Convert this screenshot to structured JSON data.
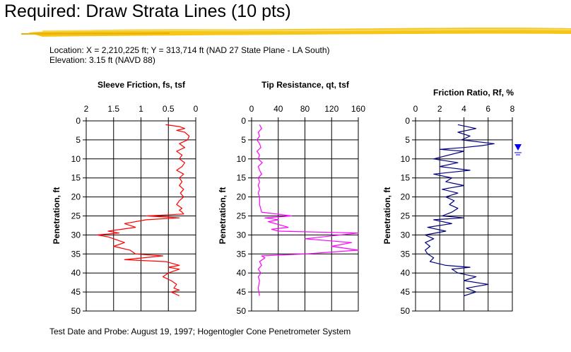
{
  "slide": {
    "title": "Required: Draw Strata Lines (10 pts)",
    "location": "Location:  X = 2,210,225 ft; Y = 313,714 ft (NAD 27 State Plane - LA South)",
    "elevation": "Elevation: 3.15 ft (NAVD 88)",
    "footer": "Test Date and Probe:  August 19, 1997; Hogentogler Cone Penetrometer System"
  },
  "colors": {
    "highlight": "#f5c518",
    "sleeve": "#ff0000",
    "tip": "#ff00ff",
    "ratio": "#00007f",
    "water": "#0000ff"
  },
  "chart_data": [
    {
      "type": "line",
      "title": "Sleeve Friction, fs, tsf",
      "ylabel": "Penetration, ft",
      "xlim": [
        2,
        0
      ],
      "xticks": [
        2,
        1.5,
        1,
        0.5,
        0
      ],
      "xtick_labels": [
        "2",
        "1.5",
        "1",
        "0.5",
        "0"
      ],
      "ylim": [
        0,
        50
      ],
      "yticks": [
        0,
        5,
        10,
        15,
        20,
        25,
        30,
        35,
        40,
        45,
        50
      ],
      "ytick_labels": [
        "0",
        "5",
        "10",
        "15",
        "20",
        "25",
        "30",
        "35",
        "40",
        "45",
        "50"
      ],
      "series": [
        {
          "name": "Sleeve Friction",
          "x": [
            0.55,
            0.3,
            0.2,
            0.35,
            0.2,
            0.12,
            0.15,
            0.3,
            0.2,
            0.35,
            0.25,
            0.3,
            0.2,
            0.25,
            0.35,
            0.22,
            0.3,
            0.25,
            0.3,
            0.22,
            0.28,
            0.22,
            0.3,
            0.35,
            0.25,
            0.3,
            0.25,
            0.22,
            0.9,
            0.3,
            0.9,
            1.3,
            1.1,
            1.6,
            1.4,
            1.8,
            1.6,
            1.5,
            1.3,
            1.5,
            1.2,
            1.1,
            0.6,
            1.3,
            0.55,
            0.3,
            0.5,
            0.3,
            0.5,
            0.6,
            0.45,
            0.35,
            0.4,
            0.3,
            0.45,
            0.3
          ],
          "y": [
            1,
            1.5,
            2,
            2.5,
            3,
            4,
            5,
            6,
            7,
            8,
            9,
            10,
            11,
            12,
            13,
            14,
            15,
            16,
            17,
            18,
            19,
            20,
            21,
            22,
            23,
            23.5,
            24,
            24.5,
            25,
            25.5,
            26,
            27,
            28,
            29,
            29.5,
            30,
            30.5,
            31,
            32,
            33,
            34,
            35,
            35.5,
            36.5,
            37,
            38,
            38.5,
            39,
            40,
            41,
            42,
            43,
            44,
            44.5,
            45,
            46
          ]
        }
      ]
    },
    {
      "type": "line",
      "title": "Tip Resistance, qt, tsf",
      "ylabel": "Penetration, ft",
      "xlim": [
        0,
        160
      ],
      "xticks": [
        0,
        40,
        80,
        120,
        160
      ],
      "xtick_labels": [
        "0",
        "40",
        "80",
        "120",
        "160"
      ],
      "ylim": [
        0,
        50
      ],
      "yticks": [
        0,
        5,
        10,
        15,
        20,
        25,
        30,
        35,
        40,
        45,
        50
      ],
      "ytick_labels": [
        "0",
        "5",
        "10",
        "15",
        "20",
        "25",
        "30",
        "35",
        "40",
        "45",
        "50"
      ],
      "series": [
        {
          "name": "Tip Resistance",
          "x": [
            12,
            15,
            10,
            12,
            8,
            12,
            14,
            8,
            12,
            10,
            16,
            10,
            12,
            15,
            10,
            12,
            10,
            12,
            10,
            12,
            12,
            15,
            60,
            20,
            40,
            25,
            55,
            30,
            40,
            160,
            80,
            150,
            120,
            160,
            80,
            15,
            20,
            12,
            15,
            10,
            14,
            10,
            12,
            10,
            12
          ],
          "y": [
            1,
            2,
            3,
            4,
            5,
            6,
            7,
            8,
            9,
            10,
            11,
            12,
            13,
            14,
            15,
            16,
            17,
            18,
            19,
            20,
            22,
            24,
            25,
            25.5,
            26,
            26.5,
            28,
            28.5,
            29,
            29.5,
            31,
            32,
            33,
            34,
            35,
            35.5,
            36,
            37,
            38,
            39,
            40,
            41,
            42,
            44,
            46
          ]
        }
      ]
    },
    {
      "type": "line",
      "title": "Friction Ratio, Rf, %",
      "ylabel": "Penetration, ft",
      "xlim": [
        0,
        8
      ],
      "xticks": [
        0,
        2,
        4,
        6,
        8
      ],
      "xtick_labels": [
        "0",
        "2",
        "4",
        "6",
        "8"
      ],
      "ylim": [
        0,
        50
      ],
      "yticks": [
        0,
        5,
        10,
        15,
        20,
        25,
        30,
        35,
        40,
        45,
        50
      ],
      "ytick_labels": [
        "0",
        "5",
        "10",
        "15",
        "20",
        "25",
        "30",
        "35",
        "40",
        "45",
        "50"
      ],
      "series": [
        {
          "name": "Friction Ratio",
          "x": [
            3.5,
            5.0,
            3.5,
            4.5,
            3.8,
            6.5,
            5.5,
            4.0,
            2.0,
            4.0,
            1.5,
            3.5,
            2.0,
            4.5,
            1.5,
            3.0,
            2.5,
            4.0,
            2.2,
            3.5,
            2.5,
            3.2,
            2.8,
            3.5,
            3.0,
            2.2,
            4.0,
            1.5,
            3.0,
            1.0,
            2.5,
            0.8,
            1.5,
            0.8,
            1.2,
            0.8,
            1.0,
            1.5,
            1.2,
            2.5,
            4.5,
            3.0,
            3.5,
            5.0,
            4.0,
            6.0,
            4.2,
            5.0,
            4.0
          ],
          "y": [
            1,
            2,
            3,
            4,
            5,
            6,
            6.5,
            7,
            7.5,
            8,
            10,
            11,
            12,
            13,
            14,
            15,
            16,
            17,
            18,
            19,
            20,
            21,
            22,
            23,
            24,
            25,
            25.5,
            26,
            27,
            28,
            29,
            30,
            31,
            32,
            33,
            34,
            35,
            36,
            37,
            38,
            38.5,
            39,
            40,
            41,
            42,
            43,
            44,
            45,
            46
          ]
        }
      ]
    }
  ]
}
